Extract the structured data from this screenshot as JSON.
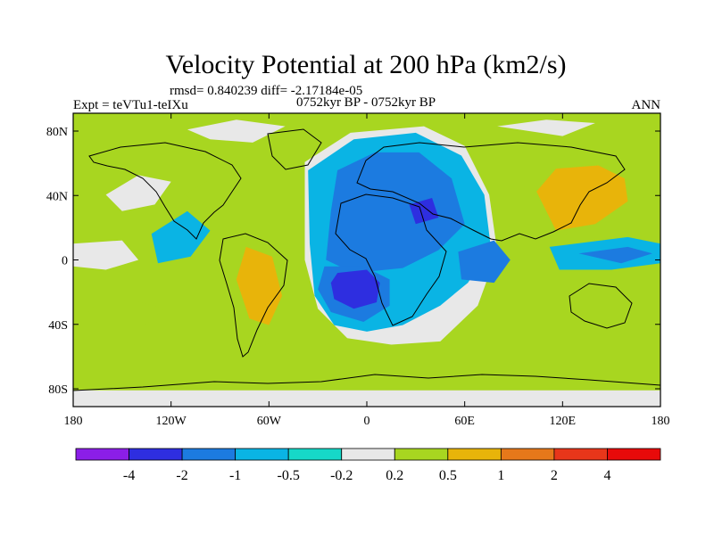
{
  "chart_data": {
    "type": "heatmap",
    "title": "Velocity Potential at 200 hPa (km2/s)",
    "stats_text": "rmsd= 0.840239 diff= -2.17184e-05",
    "left_label": "Expt = teVTu1-teIXu",
    "center_label": "0752kyr BP - 0752kyr BP",
    "right_label": "ANN",
    "x_ticks": [
      "180",
      "120W",
      "60W",
      "0",
      "60E",
      "120E",
      "180"
    ],
    "y_ticks": [
      "80N",
      "40N",
      "0",
      "40S",
      "80S"
    ],
    "xlim": [
      -180,
      180
    ],
    "ylim": [
      -90,
      90
    ],
    "grid": false,
    "legend_position": "bottom",
    "colorbar": {
      "labels": [
        "-4",
        "-2",
        "-1",
        "-0.5",
        "-0.2",
        "0.2",
        "0.5",
        "1",
        "2",
        "4"
      ],
      "colors": [
        "#8b1ee8",
        "#2e2ee0",
        "#1c7be0",
        "#0ab4e4",
        "#16d8c8",
        "#e8e8e8",
        "#a8d620",
        "#e8b40a",
        "#e6781a",
        "#e8361a",
        "#e80a0a"
      ]
    },
    "regions": [
      {
        "level": "-0.2",
        "points": [
          [
            -38,
            60
          ],
          [
            -10,
            78
          ],
          [
            35,
            82
          ],
          [
            60,
            70
          ],
          [
            75,
            40
          ],
          [
            80,
            5
          ],
          [
            68,
            -28
          ],
          [
            45,
            -50
          ],
          [
            15,
            -52
          ],
          [
            -12,
            -48
          ],
          [
            -30,
            -30
          ],
          [
            -38,
            0
          ]
        ]
      },
      {
        "level": "-0.5",
        "points": [
          [
            -36,
            55
          ],
          [
            -8,
            74
          ],
          [
            30,
            78
          ],
          [
            58,
            64
          ],
          [
            72,
            40
          ],
          [
            76,
            8
          ],
          [
            62,
            -14
          ],
          [
            45,
            -28
          ],
          [
            22,
            -40
          ],
          [
            0,
            -44
          ],
          [
            -20,
            -40
          ],
          [
            -32,
            -22
          ],
          [
            -35,
            10
          ]
        ]
      },
      {
        "level": "-1",
        "points": [
          [
            -18,
            55
          ],
          [
            5,
            66
          ],
          [
            32,
            66
          ],
          [
            52,
            50
          ],
          [
            60,
            22
          ],
          [
            44,
            6
          ],
          [
            22,
            -5
          ],
          [
            -8,
            -8
          ],
          [
            -25,
            0
          ],
          [
            -22,
            30
          ]
        ]
      },
      {
        "level": "-1",
        "points": [
          [
            -26,
            -4
          ],
          [
            -2,
            -4
          ],
          [
            14,
            -12
          ],
          [
            14,
            -28
          ],
          [
            -2,
            -38
          ],
          [
            -22,
            -32
          ],
          [
            -30,
            -18
          ]
        ]
      },
      {
        "level": "-1",
        "points": [
          [
            56,
            5
          ],
          [
            78,
            12
          ],
          [
            88,
            0
          ],
          [
            78,
            -14
          ],
          [
            58,
            -12
          ]
        ]
      },
      {
        "level": "-2",
        "points": [
          [
            -18,
            -8
          ],
          [
            0,
            -6
          ],
          [
            8,
            -14
          ],
          [
            6,
            -26
          ],
          [
            -8,
            -30
          ],
          [
            -20,
            -24
          ],
          [
            -22,
            -14
          ]
        ]
      },
      {
        "level": "-2",
        "points": [
          [
            26,
            34
          ],
          [
            40,
            38
          ],
          [
            44,
            26
          ],
          [
            30,
            22
          ]
        ]
      },
      {
        "level": "-0.5",
        "points": [
          [
            -132,
            16
          ],
          [
            -110,
            30
          ],
          [
            -96,
            18
          ],
          [
            -108,
            2
          ],
          [
            -128,
            -2
          ]
        ]
      },
      {
        "level": "-0.5",
        "points": [
          [
            112,
            8
          ],
          [
            160,
            14
          ],
          [
            180,
            10
          ],
          [
            180,
            -2
          ],
          [
            150,
            -6
          ],
          [
            118,
            -6
          ]
        ]
      },
      {
        "level": "-1",
        "points": [
          [
            130,
            4
          ],
          [
            160,
            8
          ],
          [
            175,
            4
          ],
          [
            156,
            -2
          ]
        ]
      },
      {
        "level": "-0.2",
        "points": [
          [
            -180,
            10
          ],
          [
            -150,
            12
          ],
          [
            -140,
            0
          ],
          [
            -160,
            -6
          ],
          [
            -180,
            -4
          ]
        ]
      },
      {
        "level": "-0.2",
        "points": [
          [
            -110,
            80
          ],
          [
            -80,
            86
          ],
          [
            -50,
            82
          ],
          [
            -70,
            72
          ],
          [
            -96,
            74
          ]
        ]
      },
      {
        "level": "-0.2",
        "points": [
          [
            -160,
            40
          ],
          [
            -140,
            52
          ],
          [
            -120,
            48
          ],
          [
            -130,
            34
          ],
          [
            -150,
            30
          ]
        ]
      },
      {
        "level": "-0.2",
        "points": [
          [
            80,
            82
          ],
          [
            110,
            86
          ],
          [
            140,
            84
          ],
          [
            120,
            76
          ]
        ]
      },
      {
        "level": "-0.2",
        "points": [
          [
            -180,
            -80
          ],
          [
            180,
            -80
          ],
          [
            180,
            -90
          ],
          [
            -180,
            -90
          ]
        ]
      },
      {
        "level": "0.2",
        "points": [
          [
            96,
            44
          ],
          [
            110,
            62
          ],
          [
            140,
            66
          ],
          [
            166,
            58
          ],
          [
            172,
            40
          ],
          [
            150,
            24
          ],
          [
            116,
            14
          ],
          [
            100,
            22
          ]
        ]
      },
      {
        "level": "0.5",
        "points": [
          [
            104,
            42
          ],
          [
            116,
            56
          ],
          [
            142,
            58
          ],
          [
            158,
            50
          ],
          [
            160,
            36
          ],
          [
            140,
            22
          ],
          [
            116,
            18
          ]
        ]
      },
      {
        "level": "0.2",
        "points": [
          [
            -172,
            -30
          ],
          [
            -146,
            -24
          ],
          [
            -124,
            -30
          ],
          [
            -136,
            -40
          ],
          [
            -164,
            -40
          ]
        ]
      },
      {
        "level": "0.2",
        "points": [
          [
            -78,
            20
          ],
          [
            -58,
            10
          ],
          [
            -46,
            -18
          ],
          [
            -50,
            -48
          ],
          [
            -68,
            -54
          ],
          [
            -82,
            -34
          ],
          [
            -88,
            -4
          ]
        ]
      },
      {
        "level": "0.5",
        "points": [
          [
            -74,
            8
          ],
          [
            -58,
            2
          ],
          [
            -52,
            -22
          ],
          [
            -60,
            -40
          ],
          [
            -72,
            -36
          ],
          [
            -80,
            -12
          ]
        ]
      },
      {
        "level": "0.2",
        "points": [
          [
            -112,
            40
          ],
          [
            -92,
            52
          ],
          [
            -72,
            50
          ],
          [
            -70,
            36
          ],
          [
            -94,
            30
          ]
        ]
      },
      {
        "level": "0.2",
        "points": [
          [
            -180,
            -52
          ],
          [
            -150,
            -50
          ],
          [
            -120,
            -58
          ],
          [
            -120,
            -64
          ],
          [
            -180,
            -66
          ]
        ]
      }
    ]
  }
}
